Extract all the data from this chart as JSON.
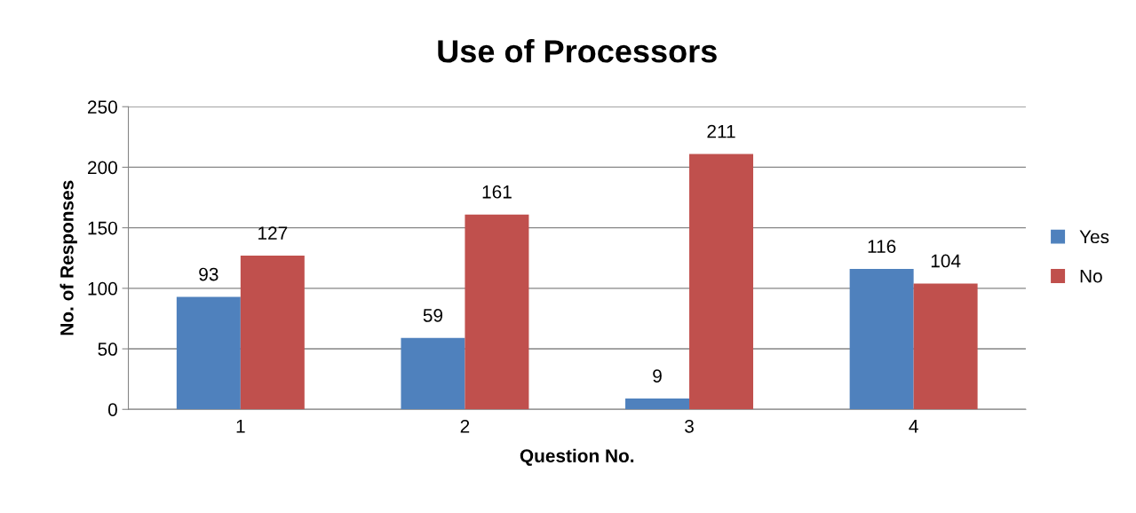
{
  "chart_data": {
    "type": "bar",
    "title": "Use of Processors",
    "xlabel": "Question No.",
    "ylabel": "No. of Responses",
    "categories": [
      "1",
      "2",
      "3",
      "4"
    ],
    "series": [
      {
        "name": "Yes",
        "color": "#4f81bd",
        "values": [
          93,
          59,
          9,
          116
        ]
      },
      {
        "name": "No",
        "color": "#c0504d",
        "values": [
          127,
          161,
          211,
          104
        ]
      }
    ],
    "ylim": [
      0,
      250
    ],
    "yticks": [
      0,
      50,
      100,
      150,
      200,
      250
    ],
    "grid": "y",
    "legend": "right",
    "data_labels": true
  }
}
